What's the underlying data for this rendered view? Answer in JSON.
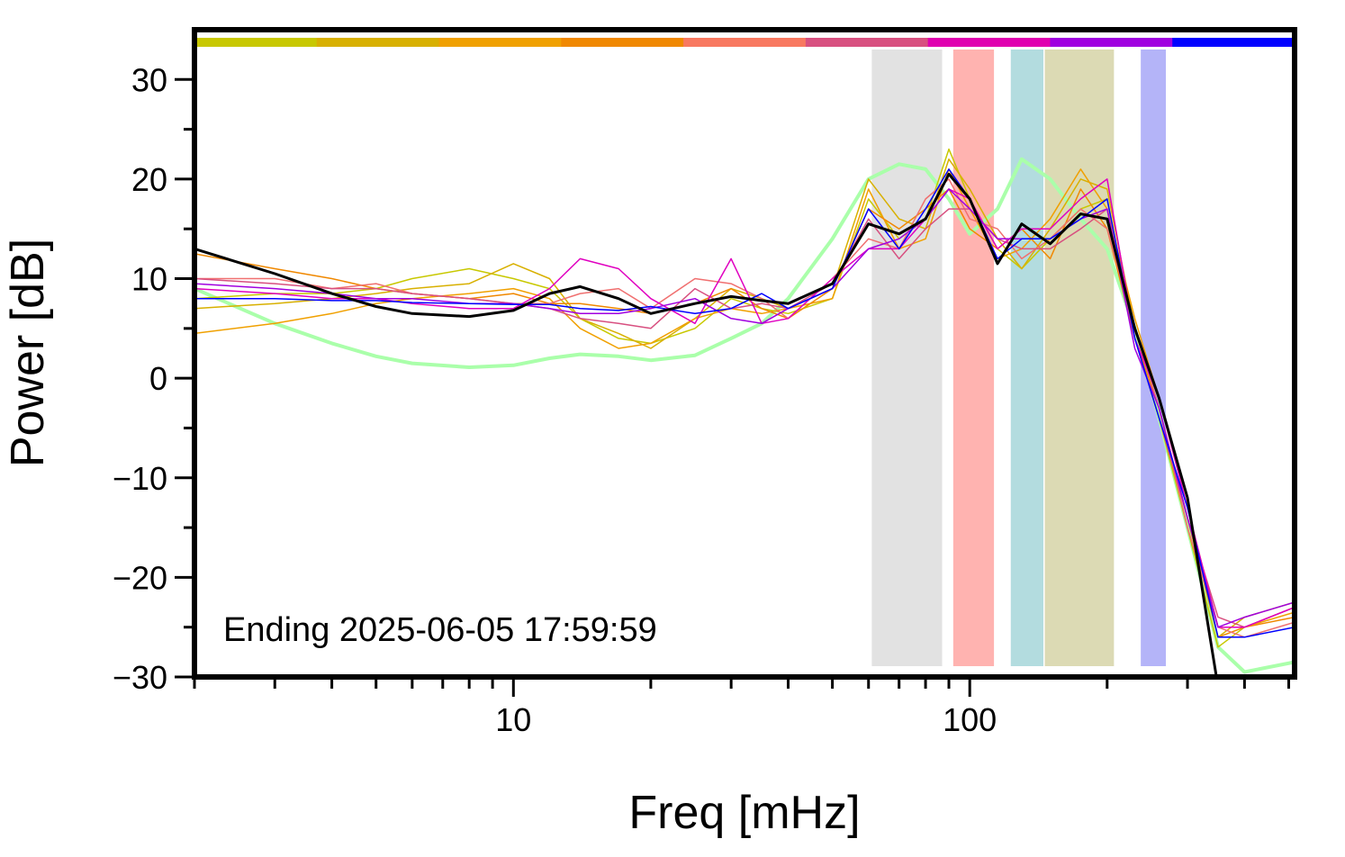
{
  "chart_data": {
    "type": "line",
    "annotation": "Ending 2025-06-05 17:59:59",
    "xlabel": "Freq [mHz]",
    "ylabel": "Power [dB]",
    "xscale": "log",
    "xlim": [
      2,
      515
    ],
    "ylim": [
      -30,
      35
    ],
    "xticks": [
      10,
      100
    ],
    "xminorticks": [
      2,
      3,
      4,
      5,
      6,
      7,
      8,
      9,
      20,
      30,
      40,
      50,
      60,
      70,
      80,
      90,
      200,
      300,
      400,
      500
    ],
    "yticks": [
      {
        "value": -30,
        "label": "−30"
      },
      {
        "value": -20,
        "label": "−20"
      },
      {
        "value": -10,
        "label": "−10"
      },
      0,
      10,
      20,
      30
    ],
    "yminorticks": [
      -25,
      -15,
      -5,
      5,
      15,
      25
    ],
    "colorbar": [
      "#c8c800",
      "#d8b000",
      "#f0a000",
      "#f08800",
      "#f87860",
      "#d85080",
      "#e000b0",
      "#a000e0",
      "#0000ff"
    ],
    "spans": [
      {
        "xlim": [
          61,
          87
        ],
        "color": "#e2e2e2"
      },
      {
        "xlim": [
          92,
          113
        ],
        "color": "#ffb3b0"
      },
      {
        "xlim": [
          123,
          145
        ],
        "color": "#b3dcdf"
      },
      {
        "xlim": [
          146,
          207
        ],
        "color": "#dcdab4"
      },
      {
        "xlim": [
          237,
          269
        ],
        "color": "#b4b4f8"
      }
    ],
    "x": [
      2,
      3,
      4,
      5,
      6,
      8,
      10,
      12,
      14,
      17,
      20,
      25,
      30,
      35,
      40,
      50,
      60,
      70,
      80,
      90,
      100,
      115,
      130,
      150,
      175,
      200,
      230,
      260,
      300,
      350,
      400,
      515
    ],
    "series": [
      {
        "color": "#aaffaa",
        "width": 4,
        "values": [
          9,
          5.5,
          3.5,
          2.2,
          1.5,
          1.1,
          1.3,
          2,
          2.4,
          2.2,
          1.8,
          2.3,
          4,
          5.5,
          8,
          14,
          20,
          21.5,
          21,
          18,
          14.5,
          17,
          22,
          20,
          16,
          13,
          5,
          -4,
          -15,
          -27,
          -29.5,
          -28.5
        ]
      },
      {
        "color": "#c8c800",
        "width": 1.5,
        "values": [
          8,
          8.5,
          8.5,
          9,
          10,
          11,
          10,
          9,
          6,
          4,
          3.5,
          5,
          8,
          7,
          6.5,
          8,
          18,
          14,
          16,
          23,
          18,
          13,
          11,
          14,
          17,
          18,
          4,
          -4,
          -15,
          -27,
          -25,
          -23
        ]
      },
      {
        "color": "#d8b000",
        "width": 1.5,
        "values": [
          7,
          7.5,
          8,
          8.5,
          9,
          9.5,
          11.5,
          10,
          6,
          4.5,
          3,
          6,
          9,
          8,
          7,
          9,
          20,
          16,
          15,
          22,
          19,
          14,
          11,
          15,
          20,
          19,
          5,
          -3,
          -14,
          -26,
          -24,
          -22.5
        ]
      },
      {
        "color": "#f0a000",
        "width": 1.5,
        "values": [
          4.5,
          5.5,
          6.5,
          7.5,
          8,
          8.5,
          9,
          8,
          5,
          3,
          3.5,
          6,
          7,
          6.5,
          7,
          8,
          19,
          13,
          14,
          21,
          17,
          12,
          13,
          16,
          21,
          17,
          6,
          -2,
          -13,
          -25,
          -25,
          -23.5
        ]
      },
      {
        "color": "#f08800",
        "width": 1.5,
        "values": [
          12.5,
          11,
          10,
          9,
          8.5,
          8,
          8.5,
          7.5,
          7.5,
          7,
          6.5,
          7.5,
          9,
          7,
          6,
          9,
          17,
          15,
          17,
          19,
          15,
          13,
          15,
          12,
          19,
          15,
          4,
          -3,
          -14,
          -26,
          -25,
          -24
        ]
      },
      {
        "color": "#f07070",
        "width": 1.5,
        "values": [
          10,
          10,
          9,
          9.5,
          8.5,
          8,
          7.5,
          7.5,
          8.5,
          9,
          7,
          10,
          9.5,
          8,
          6,
          10,
          14,
          13,
          18,
          20,
          16,
          15,
          12,
          14,
          17,
          15,
          5,
          -3,
          -15,
          -25,
          -26,
          -24.5
        ]
      },
      {
        "color": "#d85080",
        "width": 1.5,
        "values": [
          10,
          9.5,
          9,
          9,
          8.5,
          8,
          7.5,
          7,
          6,
          5.5,
          5,
          9,
          7,
          7.5,
          7,
          9.5,
          16,
          12,
          15,
          17,
          17,
          14,
          13,
          13,
          15,
          17,
          4,
          -4,
          -14,
          -24,
          -25,
          -23
        ]
      },
      {
        "color": "#e000c0",
        "width": 1.5,
        "values": [
          9,
          8.5,
          8,
          8,
          7.5,
          7,
          7,
          9,
          12,
          11,
          8,
          5.5,
          12,
          5.5,
          6,
          10,
          13,
          13,
          16,
          19,
          18,
          13,
          15,
          15,
          18,
          20,
          4,
          -2,
          -13,
          -25,
          -25,
          -23
        ]
      },
      {
        "color": "#a000e0",
        "width": 1.5,
        "values": [
          9.5,
          9,
          8.5,
          8,
          8,
          7.5,
          7.5,
          7,
          6.5,
          6.5,
          7,
          8,
          6,
          5.5,
          7,
          9,
          13,
          14,
          16,
          19,
          17,
          14,
          14,
          14,
          16,
          17,
          3,
          -3,
          -14,
          -25,
          -24,
          -22.5
        ]
      },
      {
        "color": "#0000ff",
        "width": 1.5,
        "values": [
          8,
          8,
          7.8,
          7.8,
          7.6,
          7.5,
          7.4,
          7.4,
          7,
          6.8,
          7.2,
          6.5,
          7,
          8.5,
          7,
          9,
          17,
          13,
          17,
          21,
          18,
          12,
          14,
          14,
          16,
          18,
          4,
          -4,
          -13,
          -26,
          -26,
          -25
        ]
      },
      {
        "color": "#000000",
        "width": 3,
        "values": [
          13,
          10.5,
          8.5,
          7.2,
          6.5,
          6.2,
          6.8,
          8.5,
          9.2,
          8,
          6.5,
          7.5,
          8.2,
          7.8,
          7.5,
          9.5,
          15.5,
          14.5,
          16,
          20.5,
          18,
          11.5,
          15.5,
          13.5,
          16.5,
          16,
          5,
          -2,
          -12,
          -31,
          null,
          null
        ]
      }
    ]
  }
}
